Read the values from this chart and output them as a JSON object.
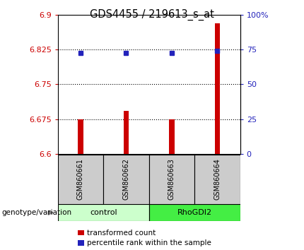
{
  "title": "GDS4455 / 219613_s_at",
  "samples": [
    "GSM860661",
    "GSM860662",
    "GSM860663",
    "GSM860664"
  ],
  "bar_values": [
    6.675,
    6.693,
    6.675,
    6.882
  ],
  "bar_bottom": 6.6,
  "blue_dot_values": [
    6.818,
    6.818,
    6.818,
    6.822
  ],
  "ylim": [
    6.6,
    6.9
  ],
  "yticks_left": [
    6.6,
    6.675,
    6.75,
    6.825,
    6.9
  ],
  "ytick_labels_left": [
    "6.6",
    "6.675",
    "6.75",
    "6.825",
    "6.9"
  ],
  "yticks_right_pos": [
    6.6,
    6.675,
    6.75,
    6.825,
    6.9
  ],
  "ytick_labels_right": [
    "0",
    "25",
    "50",
    "75",
    "100%"
  ],
  "hlines": [
    6.675,
    6.75,
    6.825
  ],
  "bar_color": "#cc0000",
  "dot_color": "#2222bb",
  "bar_width": 0.12,
  "groups": [
    {
      "label": "control",
      "samples": [
        0,
        1
      ],
      "color": "#ccffcc"
    },
    {
      "label": "RhoGDI2",
      "samples": [
        2,
        3
      ],
      "color": "#44ee44"
    }
  ],
  "legend_items": [
    {
      "label": "transformed count",
      "color": "#cc0000"
    },
    {
      "label": "percentile rank within the sample",
      "color": "#2222bb"
    }
  ],
  "genotype_label": "genotype/variation",
  "axis_left_color": "#cc0000",
  "axis_right_color": "#2222bb",
  "sample_box_color": "#cccccc",
  "figsize": [
    4.3,
    3.54
  ],
  "dpi": 100
}
